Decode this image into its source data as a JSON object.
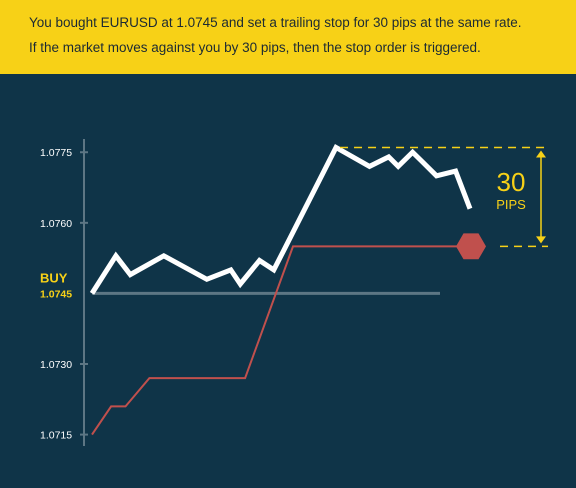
{
  "banner": {
    "line1": "You bought EURUSD at 1.0745 and set a trailing stop for 30 pips at the same rate.",
    "line2": "If the market moves against you by 30 pips, then the stop order is triggered."
  },
  "colors": {
    "background": "#0f3448",
    "banner": "#f7d117",
    "price_line": "#ffffff",
    "stop_line": "#c0504d",
    "accent": "#f7d117"
  },
  "chart_data": {
    "type": "line",
    "ylim": [
      1.0713,
      1.0781
    ],
    "y_ticks": [
      {
        "value": 1.0775,
        "label": "1.0775"
      },
      {
        "value": 1.076,
        "label": "1.0760"
      },
      {
        "value": 1.073,
        "label": "1.0730"
      },
      {
        "value": 1.0715,
        "label": "1.0715"
      }
    ],
    "buy": {
      "label": "BUY",
      "value": 1.0745,
      "value_label": "1.0745"
    },
    "annotation": {
      "value": "30",
      "unit": "PIPS"
    },
    "series": [
      {
        "key": "price",
        "x": [
          0,
          5,
          8,
          15,
          24,
          29,
          31,
          35,
          38,
          40,
          51,
          58,
          62,
          64,
          67,
          69,
          72,
          76,
          79
        ],
        "values": [
          1.0745,
          1.0753,
          1.0749,
          1.0753,
          1.0748,
          1.075,
          1.0747,
          1.0752,
          1.075,
          1.0754,
          1.0776,
          1.0772,
          1.0774,
          1.0772,
          1.0775,
          1.0773,
          1.077,
          1.0771,
          1.0763
        ]
      },
      {
        "key": "trailing-stop",
        "x": [
          0,
          4,
          7,
          12,
          32,
          42
        ],
        "values": [
          1.0715,
          1.0721,
          1.0721,
          1.0727,
          1.0727,
          1.0755
        ]
      }
    ]
  }
}
